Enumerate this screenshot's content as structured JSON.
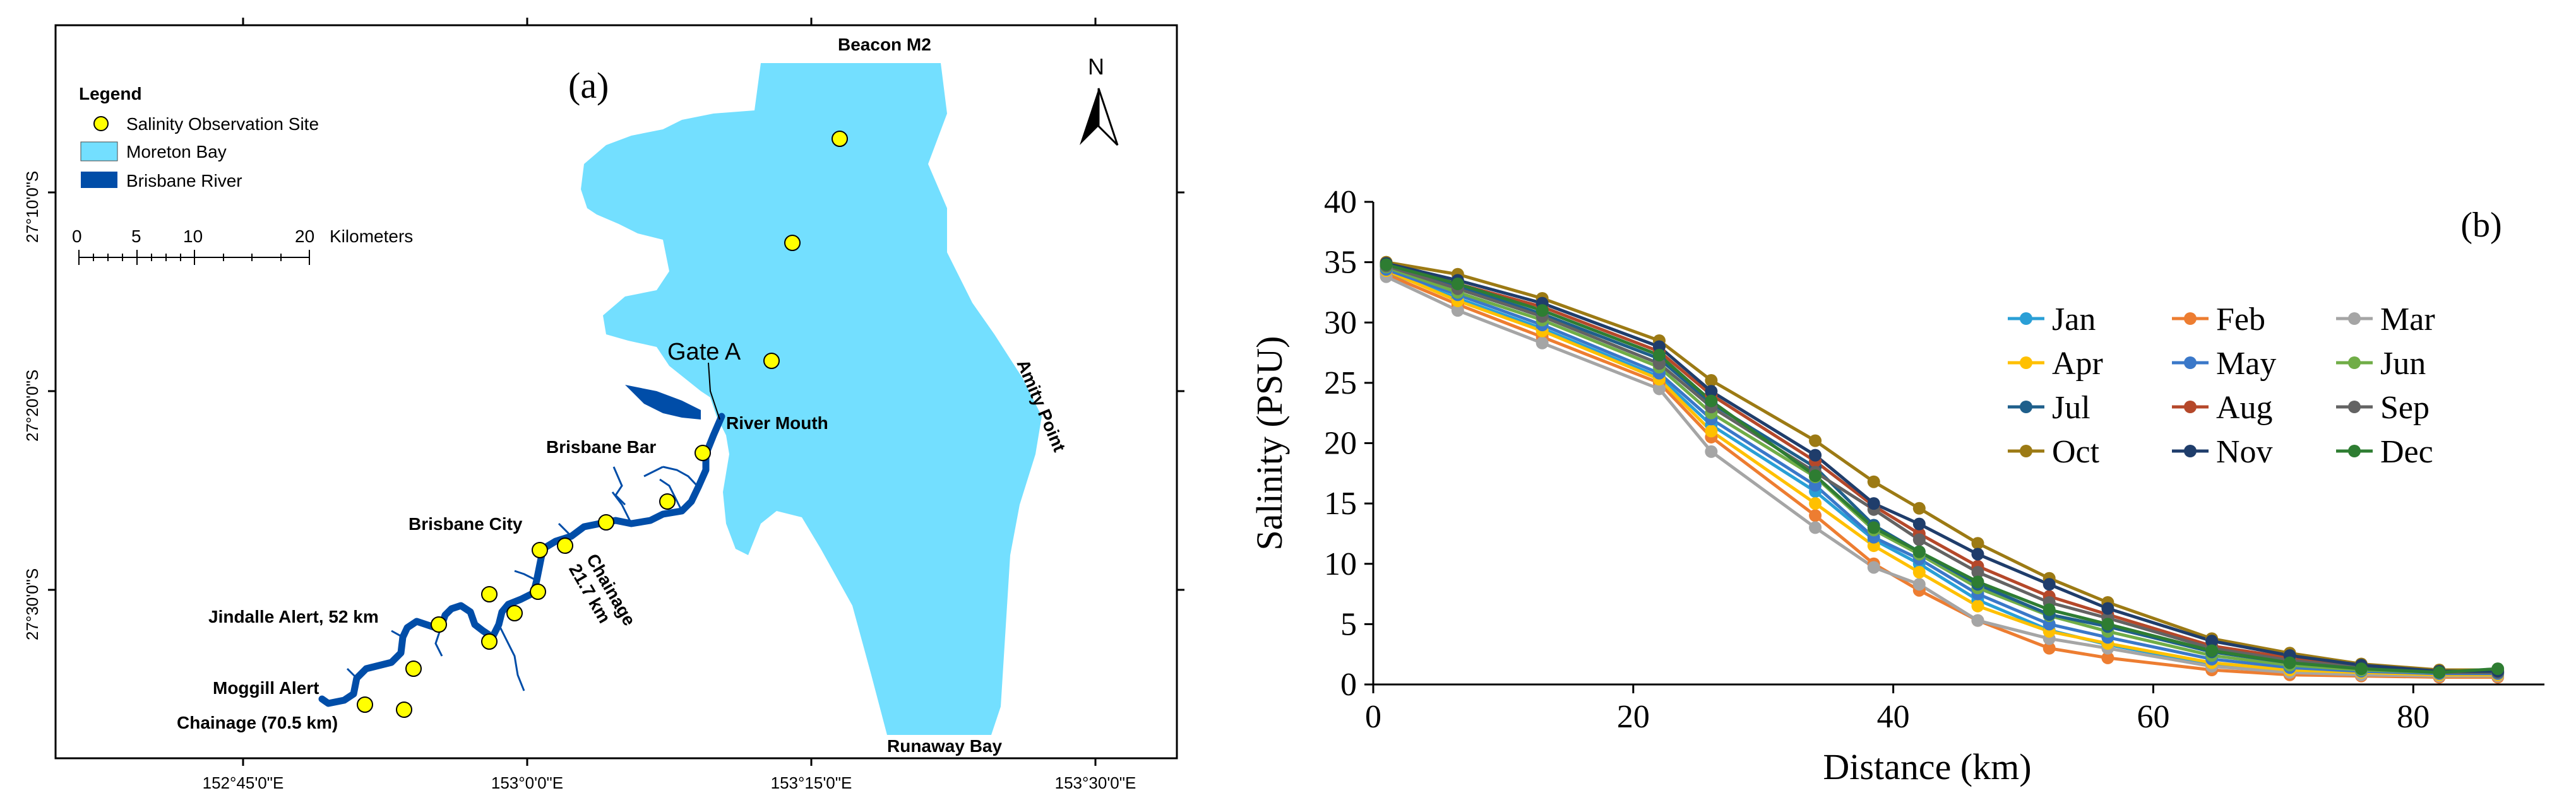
{
  "map": {
    "panel_label": "(a)",
    "legend": {
      "title": "Legend",
      "items": [
        {
          "label": "Salinity Observation Site",
          "color": "#ffff00"
        },
        {
          "label": "Moreton Bay",
          "color": "#73dfff"
        },
        {
          "label": "Brisbane River",
          "color": "#004da8"
        }
      ]
    },
    "scale_bar": {
      "ticks": [
        "0",
        "5",
        "10",
        "20"
      ],
      "unit": "Kilometers"
    },
    "north_label": "N",
    "lat_labels": [
      "27°10'0\"S",
      "27°20'0\"S",
      "27°30'0\"S"
    ],
    "lon_labels": [
      "152°45'0\"E",
      "153°0'0\"E",
      "153°15'0\"E",
      "153°30'0\"E"
    ],
    "places": {
      "beacon": "Beacon M2",
      "gate": "Gate A",
      "river_mouth": "River Mouth",
      "bar": "Brisbane Bar",
      "amity": "Amity Point",
      "city": "Brisbane City",
      "chainage_217": "Chainage 21.7 km",
      "jindalle": "Jindalle Alert, 52 km",
      "moggill": "Moggill Alert",
      "chainage_705": "Chainage (70.5 km)",
      "runaway": "Runaway Bay"
    }
  },
  "colors": {
    "bay": "#73dfff",
    "river": "#004da8",
    "site": "#ffff00"
  },
  "chart_data": {
    "type": "line",
    "panel_label": "(b)",
    "xlabel": "Distance (km)",
    "ylabel": "Salinity (PSU)",
    "xlim": [
      0,
      88
    ],
    "ylim": [
      0,
      40
    ],
    "xticks": [
      0,
      20,
      40,
      60,
      80
    ],
    "yticks": [
      0,
      5,
      10,
      15,
      20,
      25,
      30,
      35,
      40
    ],
    "grid": false,
    "legend_position": "right",
    "x": [
      1,
      6.5,
      13,
      22,
      26,
      34,
      38.5,
      42,
      46.5,
      52,
      56.5,
      64.5,
      70.5,
      76,
      82,
      86.5
    ],
    "series": [
      {
        "name": "Jan",
        "color": "#2a9fd6",
        "values": [
          34.2,
          32.0,
          29.5,
          25.5,
          21.5,
          16.0,
          12.0,
          10.0,
          7.0,
          4.5,
          3.3,
          1.7,
          1.2,
          1.0,
          0.9,
          0.9
        ]
      },
      {
        "name": "Feb",
        "color": "#ed7d31",
        "values": [
          34.0,
          31.5,
          28.8,
          25.0,
          20.5,
          14.0,
          10.0,
          7.8,
          5.3,
          3.0,
          2.2,
          1.2,
          0.8,
          0.7,
          0.6,
          0.6
        ]
      },
      {
        "name": "Mar",
        "color": "#a5a5a5",
        "values": [
          33.8,
          31.0,
          28.3,
          24.5,
          19.3,
          13.0,
          9.7,
          8.3,
          5.3,
          3.8,
          3.0,
          1.5,
          1.0,
          0.8,
          0.7,
          0.7
        ]
      },
      {
        "name": "Apr",
        "color": "#ffc000",
        "values": [
          34.3,
          31.8,
          29.3,
          25.3,
          21.0,
          15.0,
          11.5,
          9.3,
          6.5,
          4.4,
          3.4,
          1.8,
          1.2,
          1.0,
          0.8,
          0.8
        ]
      },
      {
        "name": "May",
        "color": "#3a78c9",
        "values": [
          34.4,
          32.3,
          29.8,
          25.8,
          22.0,
          16.5,
          12.2,
          10.4,
          7.5,
          5.0,
          3.9,
          2.1,
          1.4,
          1.1,
          0.9,
          0.9
        ]
      },
      {
        "name": "Jun",
        "color": "#70ad47",
        "values": [
          34.6,
          32.5,
          30.2,
          26.3,
          22.5,
          17.2,
          12.8,
          10.8,
          8.0,
          5.7,
          4.4,
          2.4,
          1.6,
          1.2,
          1.0,
          1.0
        ]
      },
      {
        "name": "Jul",
        "color": "#1f5f8b",
        "values": [
          34.7,
          33.0,
          30.7,
          27.0,
          23.3,
          18.0,
          13.2,
          11.0,
          8.3,
          5.8,
          4.8,
          2.7,
          1.8,
          1.4,
          1.0,
          1.0
        ]
      },
      {
        "name": "Aug",
        "color": "#b5482a",
        "values": [
          34.8,
          33.2,
          31.3,
          27.6,
          24.0,
          18.5,
          14.8,
          12.5,
          9.8,
          7.3,
          5.8,
          3.2,
          2.2,
          1.5,
          1.1,
          1.1
        ]
      },
      {
        "name": "Sep",
        "color": "#636363",
        "values": [
          34.7,
          32.8,
          30.5,
          26.6,
          23.0,
          17.6,
          14.5,
          12.0,
          9.3,
          6.8,
          5.5,
          3.0,
          2.0,
          1.4,
          1.0,
          1.0
        ]
      },
      {
        "name": "Oct",
        "color": "#9c7a14",
        "values": [
          35.0,
          34.0,
          32.0,
          28.5,
          25.2,
          20.2,
          16.8,
          14.6,
          11.7,
          8.8,
          6.8,
          3.8,
          2.6,
          1.7,
          1.2,
          1.2
        ]
      },
      {
        "name": "Nov",
        "color": "#1f3d6b",
        "values": [
          34.9,
          33.5,
          31.6,
          28.0,
          24.3,
          19.0,
          15.0,
          13.3,
          10.8,
          8.3,
          6.3,
          3.6,
          2.4,
          1.6,
          1.1,
          1.1
        ]
      },
      {
        "name": "Dec",
        "color": "#2e7d32",
        "values": [
          34.8,
          33.2,
          31.0,
          27.3,
          23.5,
          17.3,
          13.0,
          11.0,
          8.5,
          6.2,
          5.0,
          2.8,
          1.8,
          1.3,
          1.0,
          1.3
        ]
      }
    ]
  }
}
